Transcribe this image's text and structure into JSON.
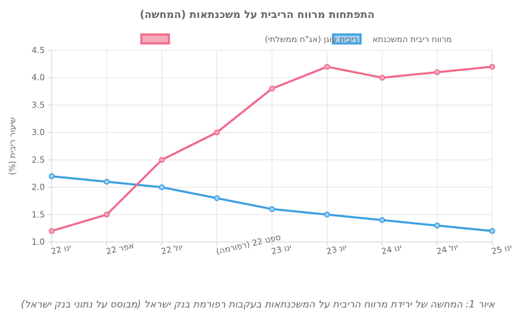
{
  "chart_data": {
    "type": "line",
    "title": "התפתחות מרווח הריבית על משכנתאות (המחשה)",
    "ylabel": "שיעור ריבית (%)",
    "xlabel": "",
    "categories": [
      "ינו 22",
      "אפר 22",
      "יול 22",
      "ספט 22 (רפורמה)",
      "ינו 23",
      "יונ 23",
      "ינו 24",
      "יול 24",
      "ינו 25"
    ],
    "series": [
      {
        "name": "מרווח ריבית המשכנתא",
        "color": "#3b9fe0",
        "fill": "#9fd0f3",
        "values": [
          2.2,
          2.1,
          2.0,
          1.8,
          1.6,
          1.5,
          1.4,
          1.3,
          1.2
        ]
      },
      {
        "name": "ריבית עוגן (אג\"ח ממשלתי)",
        "color": "#f0688a",
        "fill": "#f8a9bb",
        "values": [
          1.2,
          1.5,
          2.5,
          3.0,
          3.8,
          4.2,
          4.0,
          4.1,
          4.2
        ]
      }
    ],
    "ylim": [
      1.0,
      4.5
    ],
    "yticks": [
      "1.0",
      "1.5",
      "2.0",
      "2.5",
      "3.0",
      "3.5",
      "4.0",
      "4.5"
    ],
    "grid": true,
    "legend": "top-center"
  },
  "caption": "איור 1: המחשה של ירידת מרווח הריבית על המשכנתאות בעקבות רפורמת בנק ישראל (מבוסס על נתוני בנק ישראל)"
}
